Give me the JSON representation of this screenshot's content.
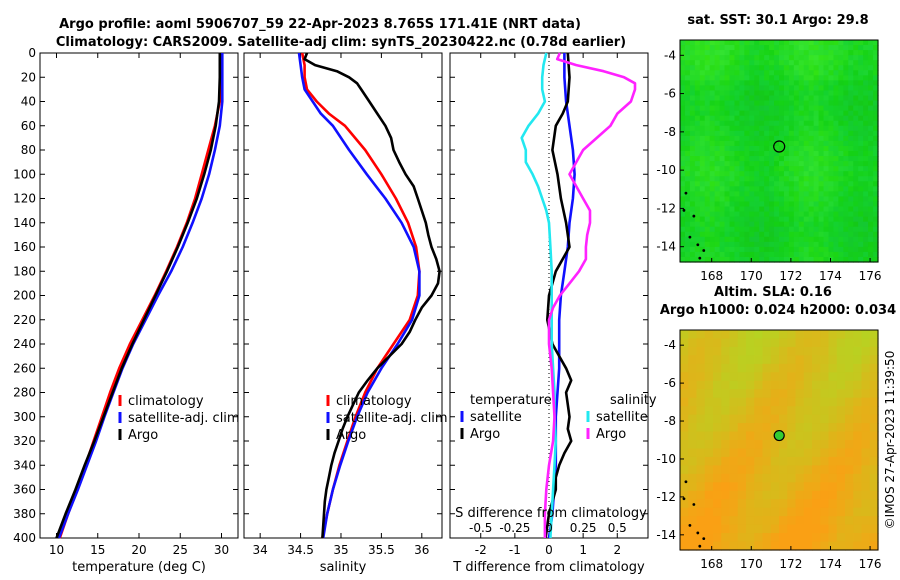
{
  "header": {
    "line1": "Argo profile: aoml 5906707_59 22-Apr-2023 8.765S 171.41E (NRT data)",
    "line2": "Climatology: CARS2009. Satellite-adj clim: synTS_20230422.nc (0.78d earlier)"
  },
  "credit": "©IMOS 27-Apr-2023 11:39:50",
  "depth_axis": {
    "label": "",
    "ylim": [
      0,
      400
    ],
    "ticks": [
      0,
      20,
      40,
      60,
      80,
      100,
      120,
      140,
      160,
      180,
      200,
      220,
      240,
      260,
      280,
      300,
      320,
      340,
      360,
      380,
      400
    ]
  },
  "colors": {
    "climatology": "#ff0000",
    "satellite": "#1010ff",
    "argo": "#000000",
    "sal_satellite": "#22e8f0",
    "sal_argo": "#ff22ff"
  },
  "chart_data": [
    {
      "type": "line",
      "title": "",
      "xlabel": "temperature (deg C)",
      "ylabel": "",
      "xlim": [
        8,
        32
      ],
      "ylim": [
        0,
        400
      ],
      "x_ticks": [
        10,
        15,
        20,
        25,
        30
      ],
      "legend": [
        "climatology",
        "satellite-adj. clim",
        "Argo"
      ],
      "legend_position": "lower-right",
      "series": [
        {
          "name": "climatology",
          "depth": [
            0,
            20,
            40,
            60,
            80,
            100,
            120,
            140,
            160,
            180,
            200,
            220,
            240,
            260,
            280,
            300,
            320,
            340,
            360,
            380,
            400
          ],
          "values": [
            29.9,
            29.9,
            29.8,
            29.2,
            28.4,
            27.6,
            26.8,
            25.8,
            24.6,
            23.3,
            21.9,
            20.4,
            18.9,
            17.6,
            16.5,
            15.5,
            14.5,
            13.5,
            12.5,
            11.4,
            10.4
          ]
        },
        {
          "name": "satellite-adj. clim",
          "depth": [
            0,
            20,
            40,
            60,
            80,
            100,
            120,
            140,
            160,
            180,
            200,
            220,
            240,
            260,
            280,
            300,
            320,
            340,
            360,
            380,
            400
          ],
          "values": [
            30.1,
            30.1,
            30.1,
            29.8,
            29.2,
            28.5,
            27.6,
            26.5,
            25.3,
            23.9,
            22.3,
            20.8,
            19.3,
            18.0,
            16.9,
            15.8,
            14.8,
            13.7,
            12.6,
            11.4,
            10.3
          ]
        },
        {
          "name": "Argo",
          "depth": [
            0,
            20,
            40,
            60,
            80,
            100,
            120,
            140,
            160,
            180,
            200,
            220,
            240,
            260,
            280,
            300,
            320,
            340,
            360,
            380,
            400
          ],
          "values": [
            29.8,
            29.8,
            29.7,
            29.3,
            28.7,
            27.9,
            27.0,
            25.9,
            24.7,
            23.4,
            22.0,
            20.6,
            19.2,
            17.9,
            16.8,
            15.7,
            14.6,
            13.4,
            12.3,
            11.1,
            10.0
          ]
        }
      ]
    },
    {
      "type": "line",
      "title": "",
      "xlabel": "salinity",
      "ylabel": "",
      "xlim": [
        33.8,
        36.25
      ],
      "ylim": [
        0,
        400
      ],
      "x_ticks": [
        34,
        34.5,
        35,
        35.5,
        36
      ],
      "legend": [
        "climatology",
        "satellite-adj. clim",
        "Argo"
      ],
      "legend_position": "lower-right",
      "series": [
        {
          "name": "climatology",
          "depth": [
            0,
            10,
            20,
            30,
            40,
            50,
            60,
            80,
            100,
            120,
            140,
            160,
            180,
            200,
            220,
            240,
            260,
            280,
            300,
            320,
            340,
            360,
            380,
            400
          ],
          "values": [
            34.52,
            34.55,
            34.55,
            34.58,
            34.7,
            34.85,
            35.05,
            35.3,
            35.5,
            35.68,
            35.83,
            35.93,
            35.97,
            35.95,
            35.85,
            35.65,
            35.45,
            35.3,
            35.18,
            35.08,
            34.98,
            34.9,
            34.83,
            34.77
          ]
        },
        {
          "name": "satellite-adj. clim",
          "depth": [
            0,
            10,
            20,
            30,
            40,
            50,
            60,
            80,
            100,
            120,
            140,
            160,
            180,
            200,
            220,
            240,
            260,
            280,
            300,
            320,
            340,
            360,
            380,
            400
          ],
          "values": [
            34.48,
            34.5,
            34.52,
            34.55,
            34.65,
            34.75,
            34.9,
            35.1,
            35.32,
            35.55,
            35.75,
            35.9,
            35.97,
            35.97,
            35.88,
            35.7,
            35.5,
            35.33,
            35.2,
            35.09,
            34.99,
            34.9,
            34.83,
            34.78
          ]
        },
        {
          "name": "Argo",
          "depth": [
            0,
            5,
            10,
            15,
            20,
            25,
            30,
            40,
            50,
            60,
            70,
            80,
            90,
            100,
            110,
            120,
            130,
            140,
            150,
            160,
            170,
            180,
            190,
            200,
            210,
            220,
            230,
            240,
            250,
            260,
            270,
            280,
            290,
            300,
            310,
            320,
            330,
            340,
            350,
            360,
            370,
            380,
            390,
            400
          ],
          "values": [
            34.58,
            34.55,
            34.68,
            34.95,
            35.1,
            35.2,
            35.25,
            35.35,
            35.45,
            35.55,
            35.62,
            35.65,
            35.72,
            35.8,
            35.9,
            35.95,
            36.0,
            36.05,
            36.08,
            36.12,
            36.18,
            36.22,
            36.2,
            36.12,
            36.0,
            35.92,
            35.85,
            35.75,
            35.6,
            35.45,
            35.33,
            35.22,
            35.15,
            35.08,
            35.02,
            34.97,
            34.92,
            34.88,
            34.85,
            34.82,
            34.8,
            34.79,
            34.78,
            34.77
          ]
        }
      ]
    },
    {
      "type": "line",
      "title": "",
      "xlabel": "T difference from climatology",
      "ylabel": "",
      "xlim": [
        -2.9,
        2.9
      ],
      "ylim": [
        0,
        400
      ],
      "x_ticks": [
        -2,
        -1,
        0,
        1,
        2
      ],
      "top_label": "S difference from climatology",
      "top_ticks": [
        "-0.5",
        "-0.25",
        "0",
        "0.25",
        "0.5"
      ],
      "top_tick_values": [
        -0.5,
        -0.25,
        0,
        0.25,
        0.5
      ],
      "legend_groups": [
        "temperature",
        "salinity"
      ],
      "legend_temperature": [
        "satellite",
        "Argo"
      ],
      "legend_salinity": [
        "satellite",
        "Argo"
      ],
      "legend_position": "lower-center",
      "series": [
        {
          "name": "temperature satellite",
          "depth": [
            0,
            20,
            40,
            60,
            80,
            100,
            120,
            140,
            160,
            180,
            200,
            220,
            240,
            260,
            280,
            300,
            320,
            340,
            360,
            380,
            400
          ],
          "values": [
            0.45,
            0.45,
            0.5,
            0.6,
            0.7,
            0.75,
            0.7,
            0.6,
            0.55,
            0.45,
            0.35,
            0.3,
            0.3,
            0.3,
            0.25,
            0.2,
            0.2,
            0.2,
            0.15,
            0.1,
            0.0
          ]
        },
        {
          "name": "temperature Argo",
          "depth": [
            0,
            20,
            40,
            50,
            60,
            80,
            100,
            120,
            140,
            160,
            180,
            200,
            220,
            240,
            250,
            260,
            270,
            280,
            290,
            300,
            310,
            320,
            330,
            340,
            350,
            360,
            370,
            380,
            390,
            400
          ],
          "values": [
            0.55,
            0.6,
            0.55,
            0.4,
            0.2,
            0.1,
            0.25,
            0.35,
            0.5,
            0.6,
            0.2,
            0.0,
            -0.05,
            0.1,
            0.3,
            0.5,
            0.65,
            0.5,
            0.55,
            0.6,
            0.55,
            0.65,
            0.45,
            0.3,
            0.2,
            0.2,
            0.1,
            0.0,
            -0.05,
            -0.1
          ]
        },
        {
          "name": "salinity satellite",
          "depth": [
            0,
            10,
            20,
            30,
            40,
            50,
            60,
            70,
            80,
            90,
            100,
            110,
            120,
            130,
            140,
            160,
            180,
            200,
            220,
            240,
            260,
            280,
            300,
            320,
            340,
            360,
            380,
            400
          ],
          "values": [
            -0.02,
            -0.04,
            -0.05,
            -0.05,
            -0.03,
            -0.08,
            -0.15,
            -0.2,
            -0.17,
            -0.17,
            -0.12,
            -0.08,
            -0.05,
            -0.02,
            0.0,
            0.01,
            0.02,
            0.02,
            0.02,
            0.02,
            0.03,
            0.04,
            0.04,
            0.05,
            0.04,
            0.03,
            0.02,
            0.01
          ]
        },
        {
          "name": "salinity Argo",
          "depth": [
            0,
            5,
            10,
            15,
            20,
            25,
            30,
            40,
            50,
            60,
            70,
            80,
            90,
            100,
            110,
            120,
            130,
            140,
            150,
            160,
            170,
            180,
            190,
            200,
            210,
            220,
            240,
            260,
            280,
            300,
            320,
            340,
            360,
            380,
            400
          ],
          "values": [
            0.08,
            0.06,
            0.2,
            0.4,
            0.55,
            0.63,
            0.63,
            0.6,
            0.5,
            0.45,
            0.35,
            0.25,
            0.2,
            0.15,
            0.2,
            0.25,
            0.3,
            0.3,
            0.28,
            0.27,
            0.27,
            0.22,
            0.15,
            0.08,
            0.03,
            0.0,
            0.0,
            0.02,
            0.03,
            0.04,
            0.03,
            0.0,
            -0.02,
            -0.03,
            -0.03
          ]
        }
      ]
    },
    {
      "type": "heatmap",
      "title": "sat. SST: 30.1 Argo: 29.8",
      "xlabel": "",
      "ylabel": "",
      "xlim": [
        166.4,
        176.4
      ],
      "ylim": [
        -14.8,
        -3.2
      ],
      "x_ticks": [
        168,
        170,
        172,
        174,
        176
      ],
      "y_ticks": [
        -4,
        -6,
        -8,
        -10,
        -12,
        -14
      ],
      "marker": {
        "lon": 171.41,
        "lat": -8.765
      }
    },
    {
      "type": "heatmap",
      "title": "Altim. SLA: 0.16",
      "subtitle": "Argo h1000: 0.024 h2000: 0.034",
      "xlabel": "",
      "ylabel": "",
      "xlim": [
        166.4,
        176.4
      ],
      "ylim": [
        -14.8,
        -3.2
      ],
      "x_ticks": [
        168,
        170,
        172,
        174,
        176
      ],
      "y_ticks": [
        -4,
        -6,
        -8,
        -10,
        -12,
        -14
      ],
      "marker": {
        "lon": 171.41,
        "lat": -8.765
      }
    }
  ]
}
